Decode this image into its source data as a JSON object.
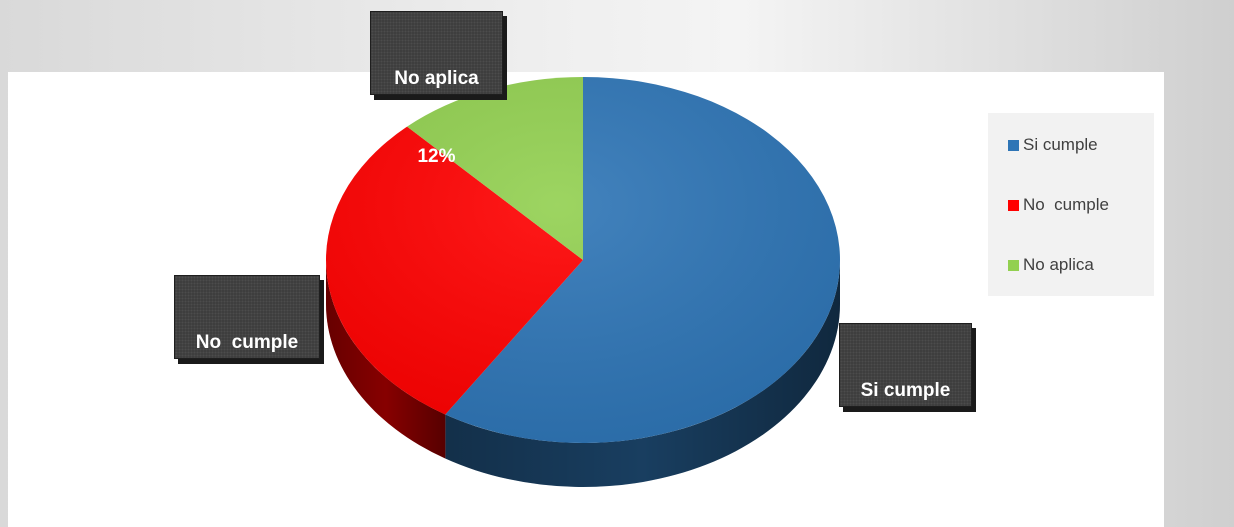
{
  "chart_data": {
    "type": "pie",
    "title": "",
    "categories": [
      "Si cumple",
      "No  cumple",
      "No aplica"
    ],
    "values": [
      59,
      29,
      12
    ],
    "unit": "%",
    "colors": [
      "#2e75b6",
      "#ff0000",
      "#92d050"
    ],
    "data_labels": [
      {
        "category": "Si cumple",
        "value": "59%"
      },
      {
        "category": "No  cumple",
        "value": "29%"
      },
      {
        "category": "No aplica",
        "value": "12%"
      }
    ],
    "legend_position": "right",
    "style": "3d-pie"
  }
}
